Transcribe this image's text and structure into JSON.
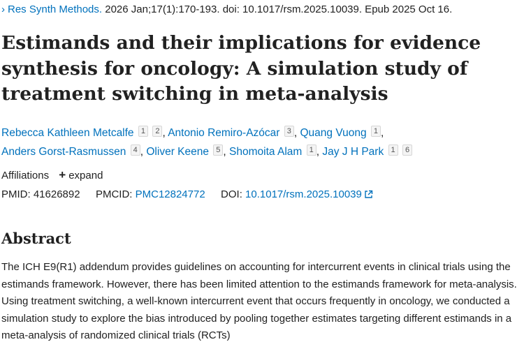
{
  "citation": {
    "journal": "Res Synth Methods.",
    "details": " 2026 Jan;17(1):170-193. doi: 10.1017/rsm.2025.10039. Epub 2025 Oct 16."
  },
  "title": "Estimands and their implications for evidence synthesis for oncology: A simulation study of treatment switching in meta-analysis",
  "authors": [
    {
      "name": "Rebecca Kathleen Metcalfe",
      "affs": [
        "1",
        "2"
      ]
    },
    {
      "name": "Antonio Remiro-Azócar",
      "affs": [
        "3"
      ]
    },
    {
      "name": "Quang Vuong",
      "affs": [
        "1"
      ]
    },
    {
      "name": "Anders Gorst-Rasmussen",
      "affs": [
        "4"
      ]
    },
    {
      "name": "Oliver Keene",
      "affs": [
        "5"
      ]
    },
    {
      "name": "Shomoita Alam",
      "affs": [
        "1"
      ]
    },
    {
      "name": "Jay J H Park",
      "affs": [
        "1",
        "6"
      ]
    }
  ],
  "affiliations": {
    "label": "Affiliations",
    "expand_label": "expand"
  },
  "identifiers": {
    "pmid_label": "PMID:",
    "pmid": "41626892",
    "pmcid_label": "PMCID:",
    "pmcid": "PMC12824772",
    "doi_label": "DOI:",
    "doi": "10.1017/rsm.2025.10039"
  },
  "abstract": {
    "heading": "Abstract",
    "text": "The ICH E9(R1) addendum provides guidelines on accounting for intercurrent events in clinical trials using the estimands framework. However, there has been limited attention to the estimands framework for meta-analysis. Using treatment switching, a well-known intercurrent event that occurs frequently in oncology, we conducted a simulation study to explore the bias introduced by pooling together estimates targeting different estimands in a meta-analysis of randomized clinical trials (RCTs)"
  },
  "colors": {
    "link": "#0071bc",
    "text": "#212121"
  }
}
